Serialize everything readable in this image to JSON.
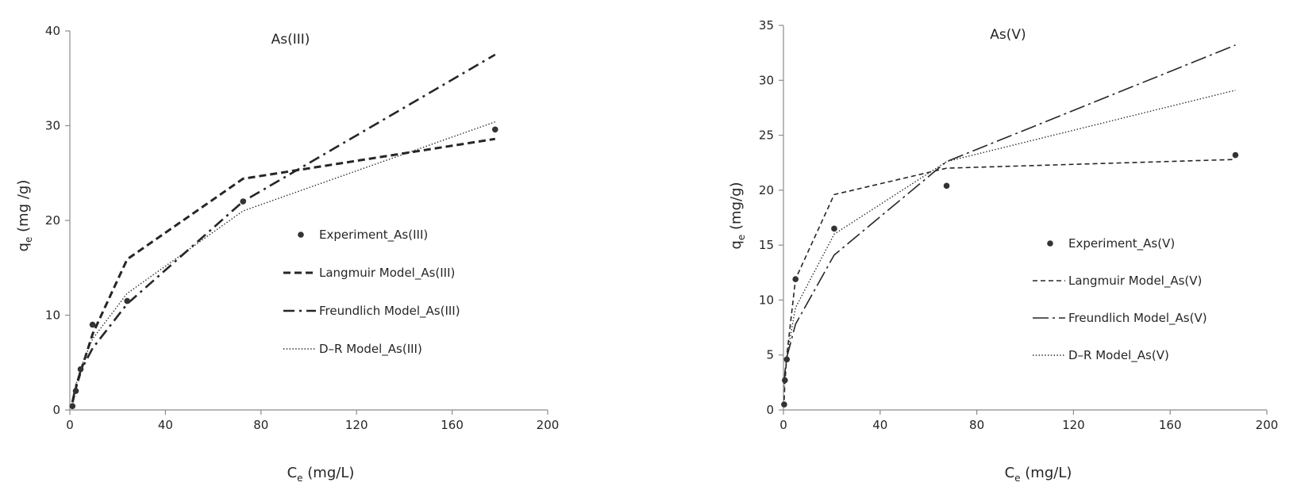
{
  "chart_data": [
    {
      "type": "scatter",
      "title": "As(III)",
      "xlabel": {
        "main": "C",
        "sub": "e",
        "unit": " (mg/L)"
      },
      "ylabel": {
        "main": "q",
        "sub": "e",
        "unit": " (mg /g)"
      },
      "xlim": [
        0,
        200
      ],
      "ylim": [
        0,
        40
      ],
      "xticks": [
        "0",
        "40",
        "80",
        "120",
        "160",
        "200"
      ],
      "yticks": [
        "0",
        "10",
        "20",
        "30",
        "40"
      ],
      "legend_position": "center-right",
      "series": [
        {
          "name": "Experiment_As(III)",
          "kind": "points",
          "color": "#333333",
          "x": [
            1.1,
            2.5,
            4.5,
            9.5,
            24.0,
            72.5,
            178.0
          ],
          "y": [
            0.4,
            2.0,
            4.3,
            9.0,
            11.5,
            22.0,
            29.6
          ]
        },
        {
          "name": "Langmuir Model_As(III)",
          "kind": "line",
          "dash": "dash-thick",
          "color": "#262626",
          "x": [
            1.1,
            2.5,
            4.5,
            9.5,
            24.0,
            72.5,
            178.0
          ],
          "y": [
            0.8,
            2.3,
            4.0,
            8.0,
            15.9,
            24.4,
            28.6
          ]
        },
        {
          "name": "Freundlich Model_As(III)",
          "kind": "line",
          "dash": "dashdot",
          "color": "#262626",
          "x": [
            1.1,
            2.5,
            4.5,
            9.5,
            24.0,
            72.5,
            178.0
          ],
          "y": [
            0.9,
            2.5,
            4.1,
            6.5,
            11.2,
            22.0,
            37.5
          ]
        },
        {
          "name": "D–R Model_As(III)",
          "kind": "line",
          "dash": "dotted",
          "color": "#262626",
          "x": [
            1.1,
            2.5,
            4.5,
            9.5,
            24.0,
            72.5,
            178.0
          ],
          "y": [
            1.0,
            2.6,
            4.4,
            7.5,
            12.3,
            21.0,
            30.4
          ]
        }
      ]
    },
    {
      "type": "scatter",
      "title": "As(V)",
      "xlabel": {
        "main": "C",
        "sub": "e",
        "unit": " (mg/L)"
      },
      "ylabel": {
        "main": "q",
        "sub": "e",
        "unit": " (mg/g)"
      },
      "xlim": [
        0,
        200
      ],
      "ylim": [
        0,
        35
      ],
      "xticks": [
        "0",
        "40",
        "80",
        "120",
        "160",
        "200"
      ],
      "yticks": [
        "0",
        "5",
        "10",
        "15",
        "20",
        "25",
        "30",
        "35"
      ],
      "legend_position": "center-right",
      "series": [
        {
          "name": "Experiment_As(V)",
          "kind": "points",
          "color": "#333333",
          "x": [
            0.3,
            0.6,
            1.4,
            5.0,
            21.0,
            67.5,
            187.0
          ],
          "y": [
            0.5,
            2.7,
            4.6,
            11.9,
            16.5,
            20.4,
            23.2
          ]
        },
        {
          "name": "Langmuir Model_As(V)",
          "kind": "line",
          "dash": "dash-thin",
          "color": "#262626",
          "x": [
            0.3,
            0.6,
            1.4,
            5.0,
            21.0,
            67.5,
            187.0
          ],
          "y": [
            0.9,
            2.4,
            5.0,
            11.9,
            19.6,
            22.0,
            22.8
          ]
        },
        {
          "name": "Freundlich Model_As(V)",
          "kind": "line",
          "dash": "dashdot-long",
          "color": "#262626",
          "x": [
            0.3,
            0.6,
            1.4,
            5.0,
            21.0,
            67.5,
            187.0
          ],
          "y": [
            2.4,
            3.4,
            4.8,
            7.8,
            14.1,
            22.6,
            33.2
          ]
        },
        {
          "name": "D–R Model_As(V)",
          "kind": "line",
          "dash": "dotted",
          "color": "#262626",
          "x": [
            0.3,
            0.6,
            1.4,
            5.0,
            21.0,
            67.5,
            187.0
          ],
          "y": [
            2.1,
            3.2,
            4.9,
            9.3,
            16.0,
            22.6,
            29.1
          ]
        }
      ]
    }
  ]
}
